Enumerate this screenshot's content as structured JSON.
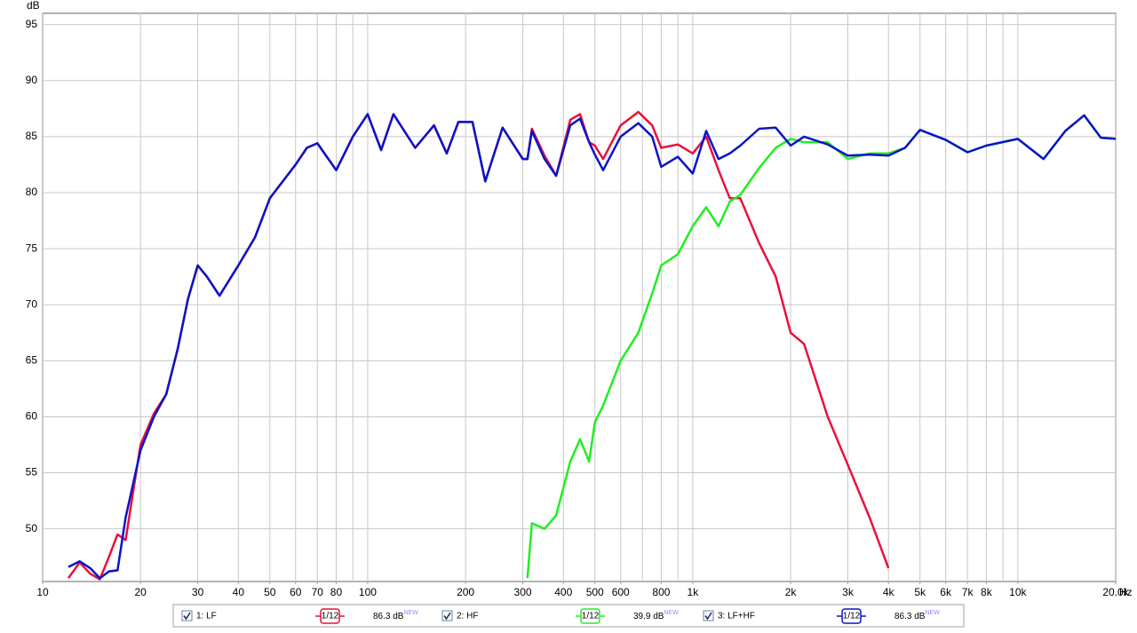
{
  "chart_data": {
    "type": "line",
    "y_label": "dB",
    "x_label": "Hz",
    "log_x": true,
    "grid": true,
    "xlim": [
      10,
      20000
    ],
    "ylim": [
      45.3,
      96
    ],
    "xticks": [
      10,
      20,
      30,
      40,
      50,
      60,
      70,
      80,
      100,
      200,
      300,
      400,
      500,
      600,
      800,
      {
        "value": 1000,
        "label": "1k"
      },
      {
        "value": 2000,
        "label": "2k"
      },
      {
        "value": 3000,
        "label": "3k"
      },
      {
        "value": 4000,
        "label": "4k"
      },
      {
        "value": 5000,
        "label": "5k"
      },
      {
        "value": 6000,
        "label": "6k"
      },
      {
        "value": 7000,
        "label": "7k"
      },
      {
        "value": 8000,
        "label": "8k"
      },
      {
        "value": 10000,
        "label": "10k"
      },
      {
        "value": 20000,
        "label": "20.0k"
      }
    ],
    "xgrid": [
      10,
      20,
      30,
      40,
      50,
      60,
      70,
      80,
      90,
      100,
      200,
      300,
      400,
      500,
      600,
      700,
      800,
      900,
      1000,
      2000,
      3000,
      4000,
      5000,
      6000,
      7000,
      8000,
      9000,
      10000,
      20000
    ],
    "yticks": [
      50,
      55,
      60,
      65,
      70,
      75,
      80,
      85,
      90,
      95
    ],
    "x": [
      12,
      13,
      14,
      15,
      16,
      17,
      18,
      20,
      22,
      24,
      26,
      28,
      30,
      32,
      35,
      40,
      45,
      50,
      60,
      65,
      70,
      80,
      90,
      100,
      110,
      120,
      140,
      160,
      175,
      190,
      210,
      230,
      260,
      300,
      310,
      320,
      350,
      380,
      420,
      450,
      480,
      500,
      530,
      600,
      680,
      750,
      800,
      900,
      1000,
      1100,
      1200,
      1300,
      1400,
      1600,
      1800,
      2000,
      2200,
      2600,
      3000,
      3500,
      4000,
      4500,
      5000,
      6000,
      7000,
      8000,
      10000,
      12000,
      14000,
      16000,
      18000,
      20000
    ],
    "series": [
      {
        "name": "1: LF",
        "color": "#e8103c",
        "smoothing": "1/12",
        "level": "86.3 dB",
        "badge": "NEW",
        "values": [
          45.6,
          47,
          46,
          45.5,
          47.5,
          49.5,
          49,
          57.5,
          60.3,
          62,
          66,
          70.5,
          73.5,
          72.5,
          70.8,
          73.5,
          76,
          79.5,
          82.5,
          84,
          84.4,
          82,
          85,
          87,
          83.8,
          87,
          84,
          86,
          83.5,
          86.3,
          86.3,
          81,
          85.8,
          83,
          83,
          85.7,
          83.3,
          81.5,
          86.5,
          87,
          84.5,
          84.2,
          83,
          86,
          87.2,
          86,
          84,
          84.3,
          83.5,
          85,
          82,
          79.5,
          79.5,
          75.5,
          72.5,
          67.5,
          66.5,
          60,
          55.7,
          51,
          46.5,
          null,
          null,
          null,
          null,
          null,
          null,
          null,
          null,
          null,
          null,
          null
        ]
      },
      {
        "name": "2: HF",
        "color": "#22ee22",
        "smoothing": "1/12",
        "level": "39.9 dB",
        "badge": "NEW",
        "values": [
          null,
          null,
          null,
          null,
          null,
          null,
          null,
          null,
          null,
          null,
          null,
          null,
          null,
          null,
          null,
          null,
          null,
          null,
          null,
          null,
          null,
          null,
          null,
          null,
          null,
          null,
          null,
          null,
          null,
          null,
          null,
          null,
          null,
          null,
          45.6,
          50.5,
          50,
          51.2,
          56,
          58,
          56,
          59.5,
          61,
          65,
          67.5,
          71,
          73.5,
          74.5,
          77,
          78.7,
          77,
          79.2,
          79.8,
          82.2,
          84,
          84.8,
          84.5,
          84.5,
          83,
          83.5,
          83.5,
          84,
          85.6,
          84.7,
          83.6,
          84.2,
          84.8,
          83,
          85.5,
          86.9,
          84.9,
          84.8
        ]
      },
      {
        "name": "3: LF+HF",
        "color": "#0a14c8",
        "smoothing": "1/12",
        "level": "86.3 dB",
        "badge": "NEW",
        "values": [
          46.6,
          47.1,
          46.5,
          45.6,
          46.2,
          46.3,
          51,
          57,
          60,
          62,
          66,
          70.5,
          73.5,
          72.5,
          70.8,
          73.5,
          76,
          79.5,
          82.5,
          84,
          84.4,
          82,
          85,
          87,
          83.8,
          87,
          84,
          86,
          83.5,
          86.3,
          86.3,
          81,
          85.8,
          83,
          83,
          85.5,
          83,
          81.5,
          86,
          86.6,
          84.5,
          83.4,
          82,
          85,
          86.2,
          85,
          82.3,
          83.2,
          81.7,
          85.5,
          83,
          83.5,
          84.2,
          85.7,
          85.8,
          84.2,
          85,
          84.3,
          83.3,
          83.4,
          83.3,
          84,
          85.6,
          84.7,
          83.6,
          84.2,
          84.8,
          83,
          85.5,
          86.9,
          84.9,
          84.8
        ]
      }
    ]
  }
}
